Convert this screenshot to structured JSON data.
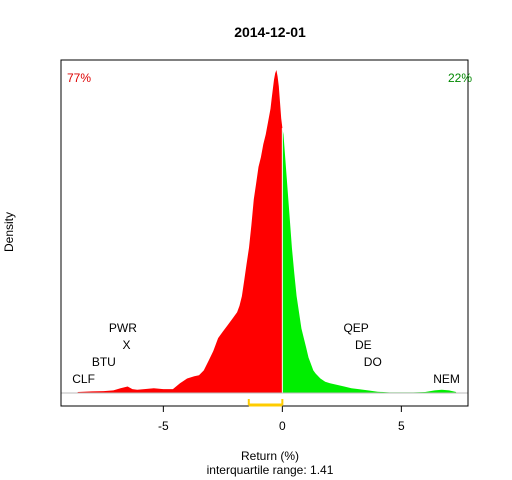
{
  "chart_data": {
    "type": "area",
    "title": "2014-12-01",
    "xlabel": "Return (%)",
    "subtitle": "interquartile range: 1.41",
    "ylabel": "Density",
    "xlim": [
      -9.3,
      7.8
    ],
    "ylim": [
      0,
      1.0
    ],
    "x_ticks": [
      -5,
      0,
      5
    ],
    "x_tick_labels": [
      "-5",
      "0",
      "5"
    ],
    "split_at": 0,
    "pct_negative": "77%",
    "pct_positive": "22%",
    "colors": {
      "negative": "#ff0000",
      "positive": "#00ee00",
      "iqr": "#ffcc00",
      "pct_negative": "#dd0000",
      "pct_positive": "#008800",
      "baseline": "#bbbbbb"
    },
    "iqr": {
      "low": -1.41,
      "high": 0.0
    },
    "density": {
      "x": [
        -8.6,
        -8.0,
        -7.5,
        -7.1,
        -6.8,
        -6.5,
        -6.3,
        -6.1,
        -5.8,
        -5.4,
        -5.0,
        -4.6,
        -4.3,
        -4.0,
        -3.7,
        -3.5,
        -3.3,
        -3.1,
        -2.9,
        -2.7,
        -2.5,
        -2.3,
        -2.1,
        -1.9,
        -1.8,
        -1.7,
        -1.6,
        -1.5,
        -1.4,
        -1.3,
        -1.2,
        -1.1,
        -1.0,
        -0.9,
        -0.8,
        -0.7,
        -0.6,
        -0.5,
        -0.45,
        -0.4,
        -0.35,
        -0.3,
        -0.25,
        -0.2,
        -0.15,
        -0.1,
        -0.05,
        0.0,
        0.05,
        0.1,
        0.2,
        0.3,
        0.4,
        0.5,
        0.6,
        0.7,
        0.8,
        0.9,
        1.0,
        1.1,
        1.2,
        1.3,
        1.4,
        1.6,
        1.8,
        2.0,
        2.3,
        2.6,
        2.9,
        3.2,
        3.6,
        4.0,
        4.5,
        5.0,
        5.5,
        6.0,
        6.4,
        6.7,
        7.0,
        7.3
      ],
      "y": [
        0.003,
        0.005,
        0.006,
        0.008,
        0.015,
        0.02,
        0.012,
        0.01,
        0.012,
        0.015,
        0.012,
        0.012,
        0.03,
        0.045,
        0.052,
        0.055,
        0.07,
        0.1,
        0.13,
        0.17,
        0.19,
        0.21,
        0.23,
        0.25,
        0.27,
        0.3,
        0.35,
        0.4,
        0.45,
        0.52,
        0.6,
        0.65,
        0.7,
        0.73,
        0.77,
        0.8,
        0.84,
        0.88,
        0.91,
        0.94,
        0.97,
        0.99,
        1.0,
        0.98,
        0.95,
        0.9,
        0.85,
        0.82,
        0.8,
        0.75,
        0.65,
        0.55,
        0.45,
        0.37,
        0.3,
        0.25,
        0.2,
        0.17,
        0.14,
        0.11,
        0.09,
        0.07,
        0.06,
        0.045,
        0.035,
        0.03,
        0.025,
        0.02,
        0.015,
        0.012,
        0.008,
        0.004,
        0.002,
        0.002,
        0.002,
        0.003,
        0.008,
        0.01,
        0.008,
        0.003
      ]
    },
    "annotations": [
      {
        "label": "CLF",
        "x": -8.35,
        "level": 1
      },
      {
        "label": "BTU",
        "x": -7.5,
        "level": 2
      },
      {
        "label": "X",
        "x": -6.55,
        "level": 3
      },
      {
        "label": "PWR",
        "x": -6.7,
        "level": 4
      },
      {
        "label": "QEP",
        "x": 3.1,
        "level": 4
      },
      {
        "label": "DE",
        "x": 3.4,
        "level": 3
      },
      {
        "label": "DO",
        "x": 3.8,
        "level": 2
      },
      {
        "label": "NEM",
        "x": 6.9,
        "level": 1
      }
    ]
  }
}
